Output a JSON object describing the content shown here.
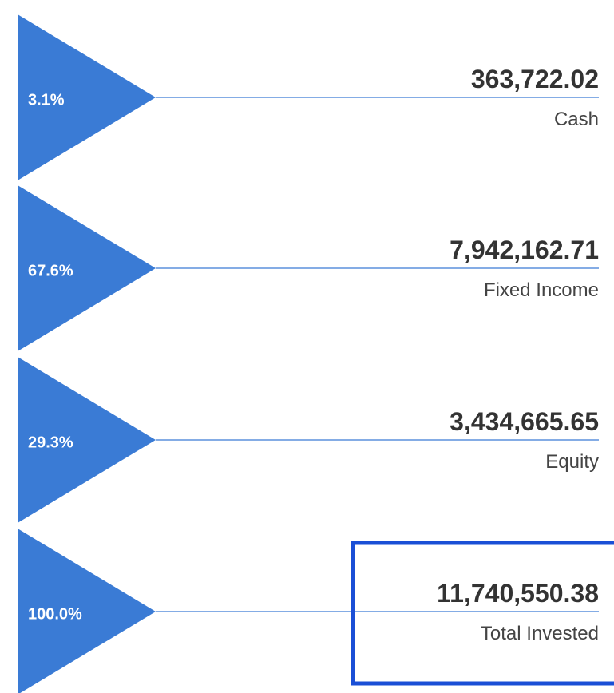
{
  "rows": [
    {
      "percent": "3.1%",
      "amount": "363,722.02",
      "label": "Cash"
    },
    {
      "percent": "67.6%",
      "amount": "7,942,162.71",
      "label": "Fixed Income"
    },
    {
      "percent": "29.3%",
      "amount": "3,434,665.65",
      "label": "Equity"
    },
    {
      "percent": "100.0%",
      "amount": "11,740,550.38",
      "label": "Total Invested"
    }
  ]
}
